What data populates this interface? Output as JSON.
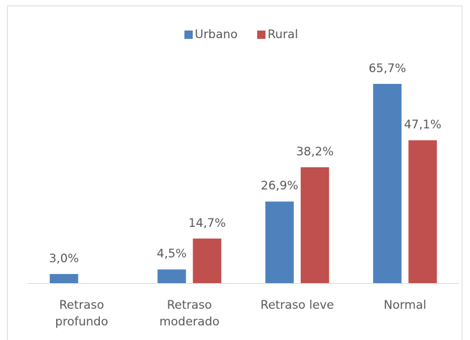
{
  "chart_data": {
    "type": "bar",
    "categories": [
      "Retraso profundo",
      "Retraso moderado",
      "Retraso leve",
      "Normal"
    ],
    "series": [
      {
        "name": "Urbano",
        "color": "#4f81bd",
        "values": [
          3.0,
          4.5,
          26.9,
          65.7
        ],
        "value_labels": [
          "3,0%",
          "4,5%",
          "26,9%",
          "65,7%"
        ]
      },
      {
        "name": "Rural",
        "color": "#c0504d",
        "values": [
          null,
          14.7,
          38.2,
          47.1
        ],
        "value_labels": [
          null,
          "14,7%",
          "38,2%",
          "47,1%"
        ]
      }
    ],
    "legend": "top"
  }
}
